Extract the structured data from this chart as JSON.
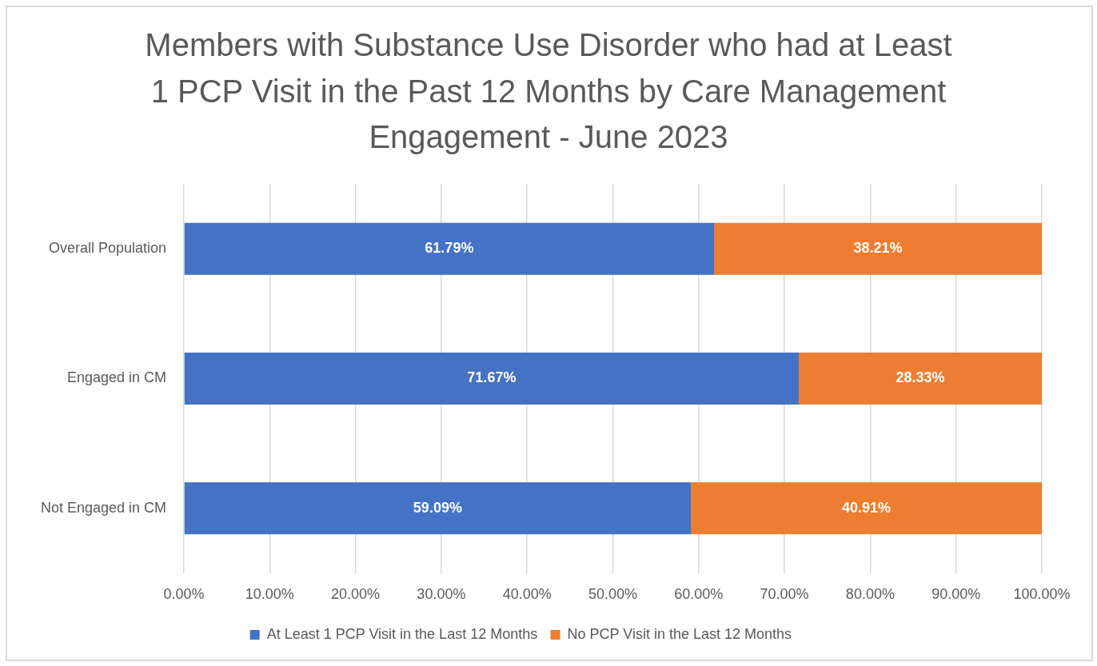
{
  "chart_data": {
    "type": "bar",
    "orientation": "horizontal",
    "stacked": true,
    "title": "Members with Substance Use Disorder who had at Least 1 PCP Visit in the Past 12 Months by Care Management Engagement - June 2023",
    "categories": [
      "Overall Population",
      "Engaged in CM",
      "Not Engaged in CM"
    ],
    "series": [
      {
        "name": "At Least 1 PCP Visit in the Last 12 Months",
        "color": "#4472c4",
        "values": [
          61.79,
          71.67,
          59.09
        ],
        "value_labels": [
          "61.79%",
          "71.67%",
          "59.09%"
        ]
      },
      {
        "name": "No PCP Visit in the Last 12 Months",
        "color": "#ed7d31",
        "values": [
          38.21,
          28.33,
          40.91
        ],
        "value_labels": [
          "38.21%",
          "28.33%",
          "40.91%"
        ]
      }
    ],
    "xlim": [
      0,
      100
    ],
    "xticks": [
      {
        "value": 0,
        "label": "0.00%"
      },
      {
        "value": 10,
        "label": "10.00%"
      },
      {
        "value": 20,
        "label": "20.00%"
      },
      {
        "value": 30,
        "label": "30.00%"
      },
      {
        "value": 40,
        "label": "40.00%"
      },
      {
        "value": 50,
        "label": "50.00%"
      },
      {
        "value": 60,
        "label": "60.00%"
      },
      {
        "value": 70,
        "label": "70.00%"
      },
      {
        "value": 80,
        "label": "80.00%"
      },
      {
        "value": 90,
        "label": "90.00%"
      },
      {
        "value": 100,
        "label": "100.00%"
      }
    ],
    "grid": "x",
    "legend": "bottom"
  }
}
